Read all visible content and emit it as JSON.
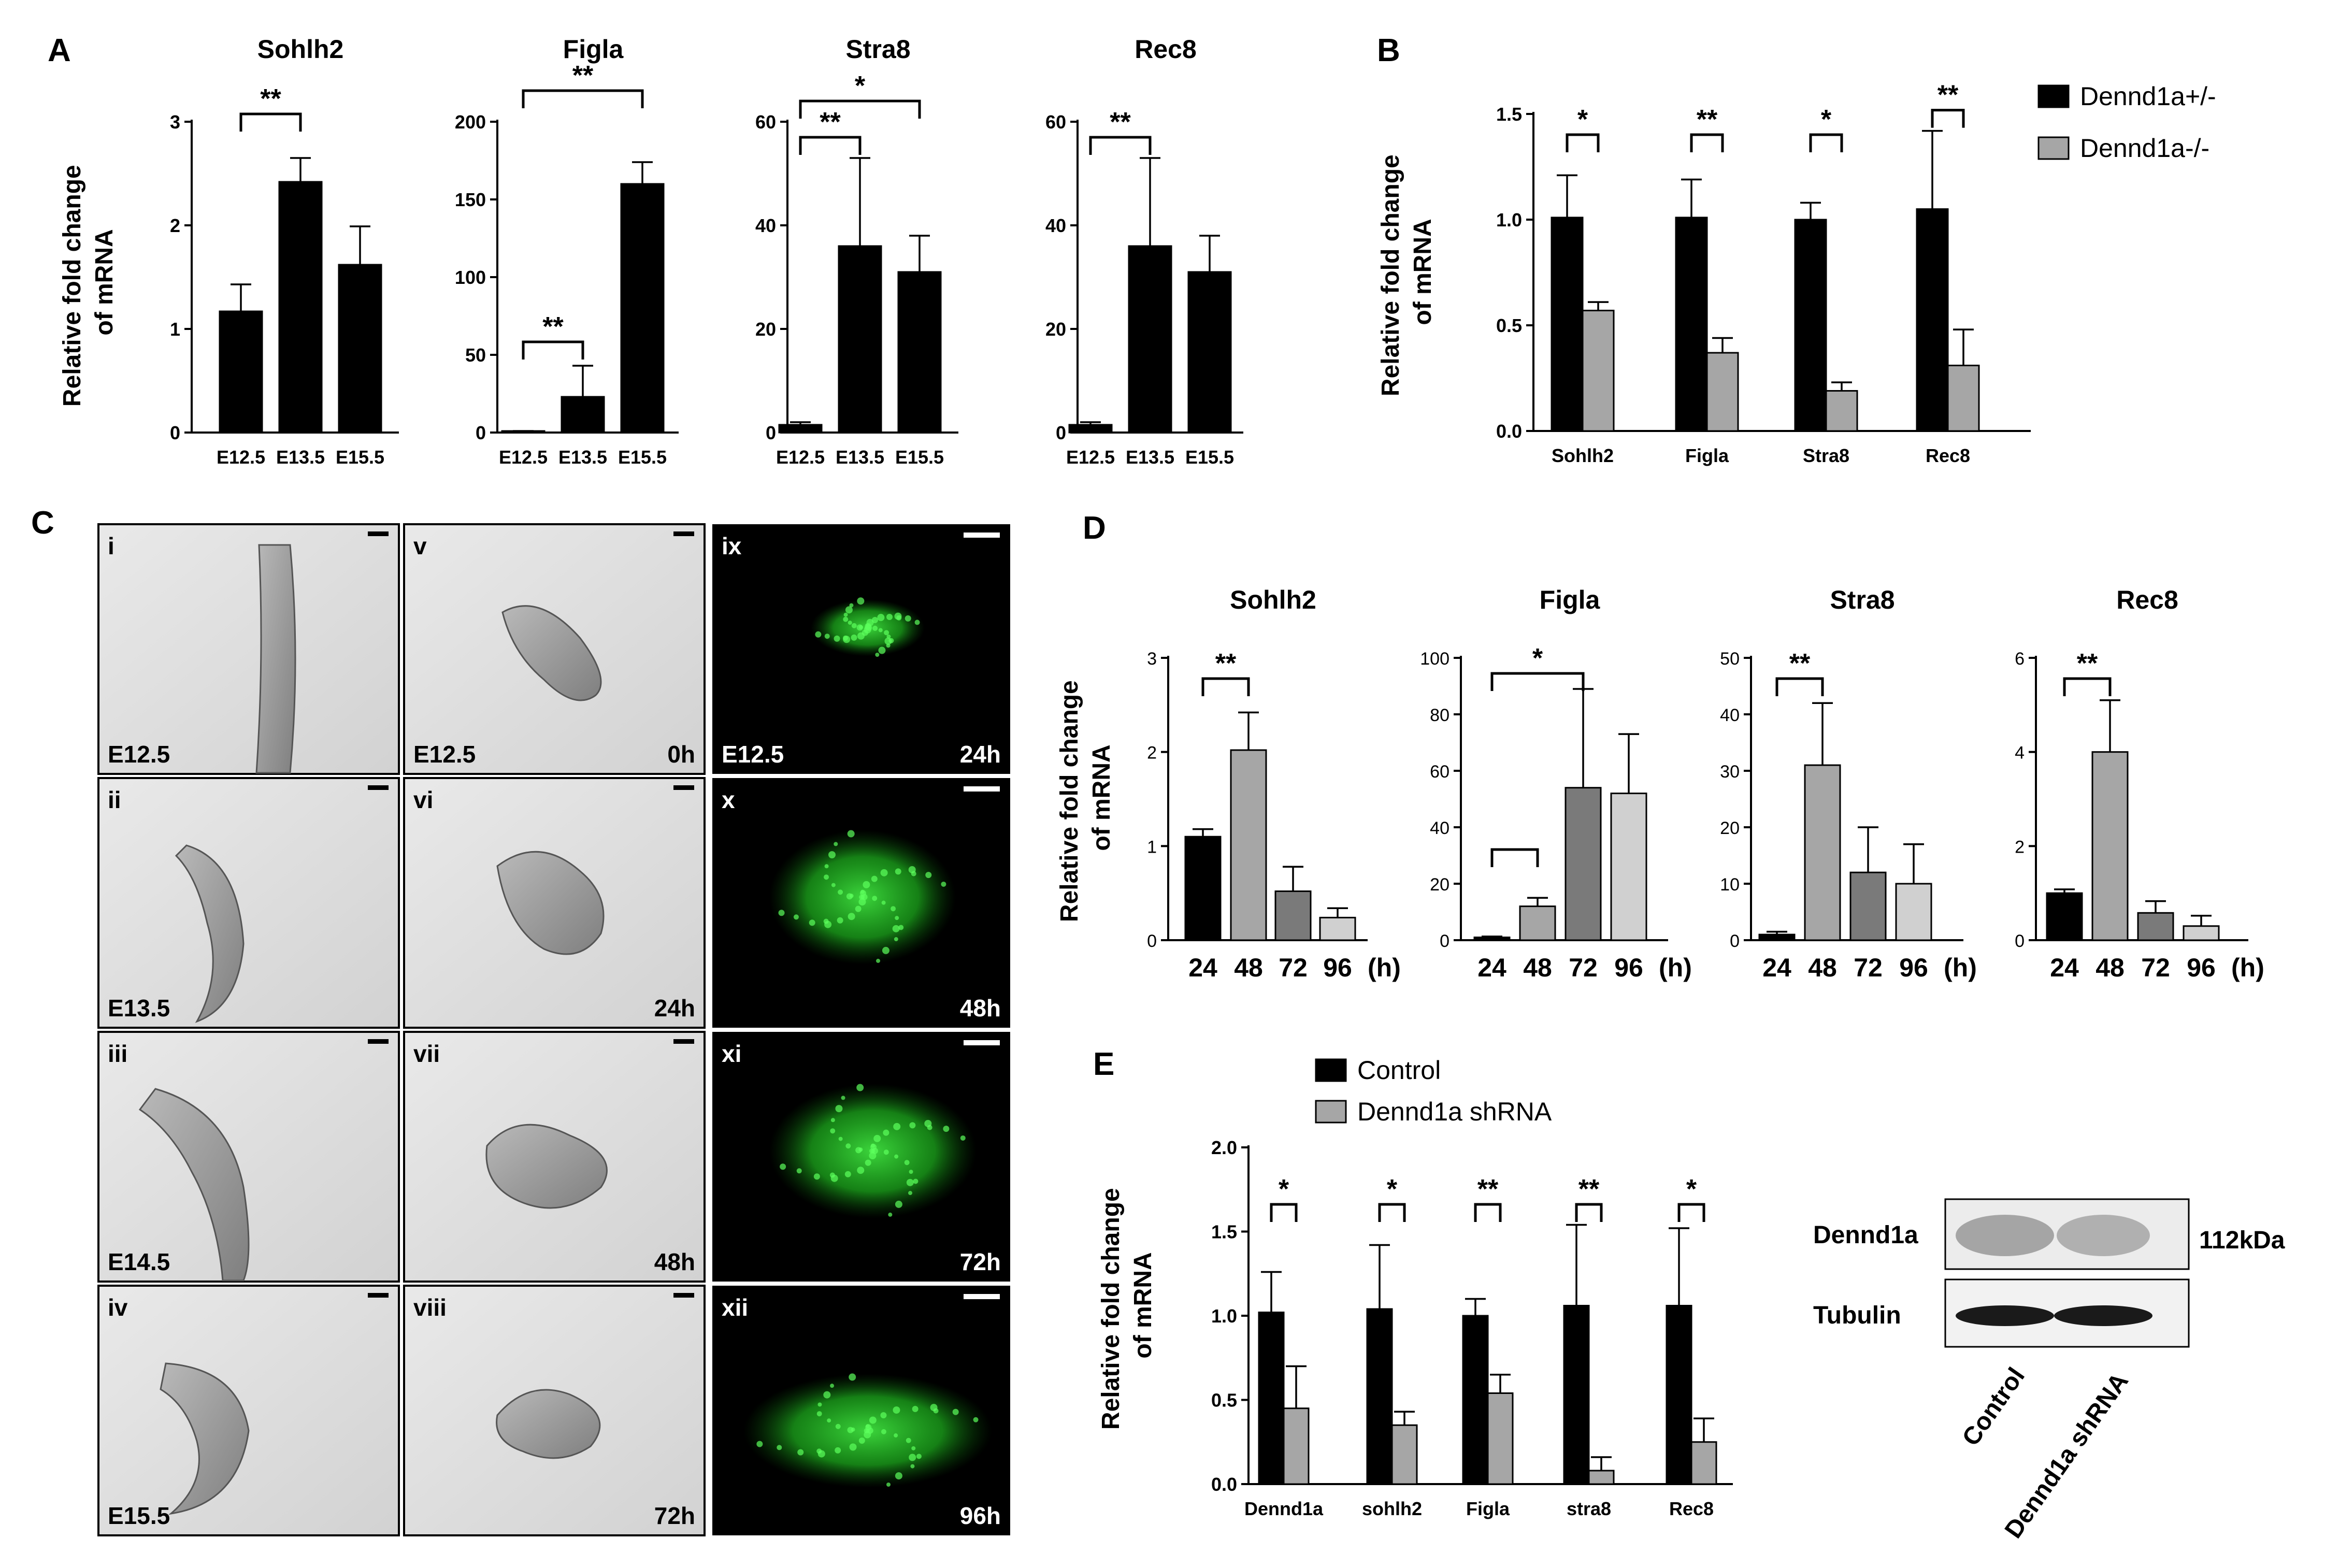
{
  "panel_labels": {
    "A": "A",
    "B": "B",
    "C": "C",
    "D": "D",
    "E": "E"
  },
  "colors": {
    "black": "#000000",
    "gray_light": "#a6a6a6",
    "gray_mid": "#7a7a7a",
    "gray_pale": "#d0d0d0",
    "gfp": "#22c422"
  },
  "chart_data": [
    {
      "id": "A1",
      "type": "bar",
      "title": "Sohlh2",
      "ylabel": "Relative fold change of mRNA",
      "categories": [
        "E12.5",
        "E13.5",
        "E15.5"
      ],
      "values": [
        1.17,
        2.42,
        1.62
      ],
      "errors": [
        0.26,
        0.23,
        0.37
      ],
      "ylim": [
        0,
        3
      ],
      "yticks": [
        0,
        1,
        2,
        3
      ],
      "colors": [
        "#000000",
        "#000000",
        "#000000"
      ],
      "sig": [
        {
          "from": 0,
          "to": 1,
          "label": "**"
        }
      ]
    },
    {
      "id": "A2",
      "type": "bar",
      "title": "Figla",
      "categories": [
        "E12.5",
        "E13.5",
        "E15.5"
      ],
      "values": [
        1,
        23,
        160
      ],
      "errors": [
        0,
        20,
        14
      ],
      "ylim": [
        0,
        200
      ],
      "yticks": [
        0,
        50,
        100,
        150,
        200
      ],
      "colors": [
        "#000000",
        "#000000",
        "#000000"
      ],
      "sig": [
        {
          "from": 0,
          "to": 1,
          "label": "**"
        },
        {
          "from": 0,
          "to": 2,
          "label": "**"
        }
      ]
    },
    {
      "id": "A3",
      "type": "bar",
      "title": "Stra8",
      "categories": [
        "E12.5",
        "E13.5",
        "E15.5"
      ],
      "values": [
        1.5,
        36,
        31
      ],
      "errors": [
        0.5,
        17,
        7
      ],
      "ylim": [
        0,
        60
      ],
      "yticks": [
        0,
        20,
        40,
        60
      ],
      "colors": [
        "#000000",
        "#000000",
        "#000000"
      ],
      "sig": [
        {
          "from": 0,
          "to": 1,
          "label": "**"
        },
        {
          "from": 0,
          "to": 2,
          "label": "*"
        }
      ]
    },
    {
      "id": "A4",
      "type": "bar",
      "title": "Rec8",
      "categories": [
        "E12.5",
        "E13.5",
        "E15.5"
      ],
      "values": [
        1.5,
        36,
        31
      ],
      "errors": [
        0.5,
        17,
        7
      ],
      "ylim": [
        0,
        60
      ],
      "yticks": [
        0,
        20,
        40,
        60
      ],
      "colors": [
        "#000000",
        "#000000",
        "#000000"
      ],
      "sig": [
        {
          "from": 0,
          "to": 1,
          "label": "**"
        }
      ]
    },
    {
      "id": "B",
      "type": "bar",
      "ylabel": "Relative fold change of mRNA",
      "categories": [
        "Sohlh2",
        "Figla",
        "Stra8",
        "Rec8"
      ],
      "series": [
        {
          "name": "Dennd1a+/-",
          "values": [
            1.01,
            1.01,
            1.0,
            1.05
          ],
          "errors": [
            0.2,
            0.18,
            0.08,
            0.37
          ],
          "color": "#000000"
        },
        {
          "name": "Dennd1a-/-",
          "values": [
            0.57,
            0.37,
            0.19,
            0.31
          ],
          "errors": [
            0.04,
            0.07,
            0.04,
            0.17
          ],
          "color": "#a6a6a6"
        }
      ],
      "ylim": [
        0,
        1.5
      ],
      "yticks": [
        "0.0",
        "0.5",
        "1.0",
        "1.5"
      ],
      "sig": [
        "*",
        "**",
        "*",
        "**"
      ],
      "legend": "top-right"
    },
    {
      "id": "D1",
      "type": "bar",
      "title": "Sohlh2",
      "ylabel": "Relative fold change of mRNA",
      "categories": [
        "24",
        "48",
        "72",
        "96"
      ],
      "xunit": "(h)",
      "values": [
        1.1,
        2.02,
        0.52,
        0.24
      ],
      "errors": [
        0.08,
        0.4,
        0.26,
        0.1
      ],
      "ylim": [
        0,
        3
      ],
      "yticks": [
        0,
        1,
        2,
        3
      ],
      "colors": [
        "#000000",
        "#a6a6a6",
        "#7a7a7a",
        "#d0d0d0"
      ],
      "sig": [
        {
          "from": 0,
          "to": 1,
          "label": "**"
        }
      ]
    },
    {
      "id": "D2",
      "type": "bar",
      "title": "Figla",
      "categories": [
        "24",
        "48",
        "72",
        "96"
      ],
      "xunit": "(h)",
      "values": [
        1,
        12,
        54,
        52
      ],
      "errors": [
        0.3,
        3,
        35,
        21
      ],
      "ylim": [
        0,
        100
      ],
      "yticks": [
        0,
        20,
        40,
        60,
        80,
        100
      ],
      "colors": [
        "#000000",
        "#a6a6a6",
        "#7a7a7a",
        "#d0d0d0"
      ],
      "sig": [
        {
          "from": 0,
          "to": 1,
          "label": ""
        },
        {
          "from": 0,
          "to": 2,
          "label": "*"
        }
      ]
    },
    {
      "id": "D3",
      "type": "bar",
      "title": "Stra8",
      "categories": [
        "24",
        "48",
        "72",
        "96"
      ],
      "xunit": "(h)",
      "values": [
        1,
        31,
        12,
        10
      ],
      "errors": [
        0.5,
        11,
        8,
        7
      ],
      "ylim": [
        0,
        50
      ],
      "yticks": [
        0,
        10,
        20,
        30,
        40,
        50
      ],
      "colors": [
        "#000000",
        "#a6a6a6",
        "#7a7a7a",
        "#d0d0d0"
      ],
      "sig": [
        {
          "from": 0,
          "to": 1,
          "label": "**"
        }
      ]
    },
    {
      "id": "D4",
      "type": "bar",
      "title": "Rec8",
      "categories": [
        "24",
        "48",
        "72",
        "96"
      ],
      "xunit": "(h)",
      "values": [
        1.0,
        4.0,
        0.58,
        0.3
      ],
      "errors": [
        0.08,
        1.1,
        0.25,
        0.22
      ],
      "ylim": [
        0,
        6
      ],
      "yticks": [
        0,
        2,
        4,
        6
      ],
      "colors": [
        "#000000",
        "#a6a6a6",
        "#7a7a7a",
        "#d0d0d0"
      ],
      "sig": [
        {
          "from": 0,
          "to": 1,
          "label": "**"
        }
      ]
    },
    {
      "id": "E",
      "type": "bar",
      "ylabel": "Relative fold change of mRNA",
      "categories": [
        "Dennd1a",
        "sohlh2",
        "Figla",
        "stra8",
        "Rec8"
      ],
      "series": [
        {
          "name": "Control",
          "values": [
            1.02,
            1.04,
            1.0,
            1.06,
            1.06
          ],
          "errors": [
            0.24,
            0.38,
            0.1,
            0.48,
            0.46
          ],
          "color": "#000000"
        },
        {
          "name": "Dennd1a shRNA",
          "values": [
            0.45,
            0.35,
            0.54,
            0.08,
            0.25
          ],
          "errors": [
            0.25,
            0.08,
            0.11,
            0.08,
            0.14
          ],
          "color": "#a6a6a6"
        }
      ],
      "ylim": [
        0,
        2.0
      ],
      "yticks": [
        "0.0",
        "0.5",
        "1.0",
        "1.5",
        "2.0"
      ],
      "sig": [
        "*",
        "*",
        "**",
        "**",
        "*"
      ],
      "legend": "top-left"
    }
  ],
  "images": {
    "c1": [
      {
        "roman": "i",
        "stage": "E12.5",
        "time": ""
      },
      {
        "roman": "ii",
        "stage": "E13.5",
        "time": ""
      },
      {
        "roman": "iii",
        "stage": "E14.5",
        "time": ""
      },
      {
        "roman": "iv",
        "stage": "E15.5",
        "time": ""
      }
    ],
    "c2": [
      {
        "roman": "v",
        "stage": "E12.5",
        "time": "0h"
      },
      {
        "roman": "vi",
        "stage": "",
        "time": "24h"
      },
      {
        "roman": "vii",
        "stage": "",
        "time": "48h"
      },
      {
        "roman": "viii",
        "stage": "",
        "time": "72h"
      }
    ],
    "c3": [
      {
        "roman": "ix",
        "stage": "E12.5",
        "time": "24h"
      },
      {
        "roman": "x",
        "stage": "",
        "time": "48h"
      },
      {
        "roman": "xi",
        "stage": "",
        "time": "72h"
      },
      {
        "roman": "xii",
        "stage": "",
        "time": "96h"
      }
    ]
  },
  "western": {
    "rows": [
      "Dennd1a",
      "Tubulin"
    ],
    "size": "112kDa",
    "lanes": [
      "Control",
      "Dennd1a shRNA"
    ]
  }
}
